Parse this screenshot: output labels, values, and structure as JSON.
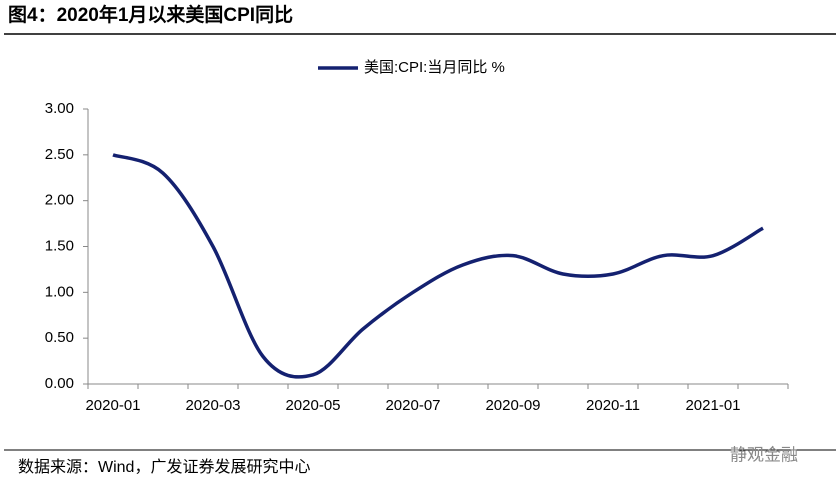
{
  "chart_data": {
    "type": "line",
    "title": "图4：2020年1月以来美国CPI同比",
    "categories": [
      "2020-01",
      null,
      "2020-03",
      null,
      "2020-05",
      null,
      "2020-07",
      null,
      "2020-09",
      null,
      "2020-11",
      null,
      "2021-01",
      null
    ],
    "series": [
      {
        "name": "美国:CPI:当月同比 %",
        "color": "#142170",
        "values": [
          2.5,
          2.3,
          1.5,
          0.3,
          0.1,
          0.6,
          1.0,
          1.3,
          1.4,
          1.2,
          1.2,
          1.4,
          1.4,
          1.7
        ]
      }
    ],
    "ylim": [
      0,
      3
    ],
    "yticks": [
      {
        "value": 0,
        "label": "0.00"
      },
      {
        "value": 0.5,
        "label": "0.50"
      },
      {
        "value": 1,
        "label": "1.00"
      },
      {
        "value": 1.5,
        "label": "1.50"
      },
      {
        "value": 2,
        "label": "2.00"
      },
      {
        "value": 2.5,
        "label": "2.50"
      },
      {
        "value": 3,
        "label": "3.00"
      }
    ],
    "grid": false,
    "legend": "top",
    "source": "数据来源：Wind，广发证券发展研究中心",
    "watermark": "静观金融"
  }
}
